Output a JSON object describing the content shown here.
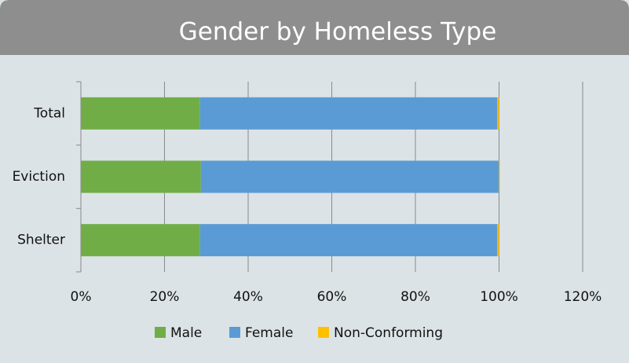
{
  "chart_data": {
    "type": "stacked-barh",
    "title": "Gender by Homeless Type",
    "categories": [
      "Total",
      "Eviction",
      "Shelter"
    ],
    "series": [
      {
        "name": "Male",
        "color": "#70ad47",
        "values": [
          28.5,
          28.7,
          28.5
        ]
      },
      {
        "name": "Female",
        "color": "#5b9bd5",
        "values": [
          71.1,
          71.3,
          71.1
        ]
      },
      {
        "name": "Non-Conforming",
        "color": "#ffc000",
        "values": [
          0.4,
          0.2,
          0.4
        ]
      }
    ],
    "xlim": [
      0,
      120
    ],
    "xticks": [
      {
        "value": 0,
        "label": "0%"
      },
      {
        "value": 20,
        "label": "20%"
      },
      {
        "value": 40,
        "label": "40%"
      },
      {
        "value": 60,
        "label": "60%"
      },
      {
        "value": 80,
        "label": "80%"
      },
      {
        "value": 100,
        "label": "100%"
      },
      {
        "value": 120,
        "label": "120%"
      }
    ],
    "grid": true,
    "legend": "bottom"
  }
}
